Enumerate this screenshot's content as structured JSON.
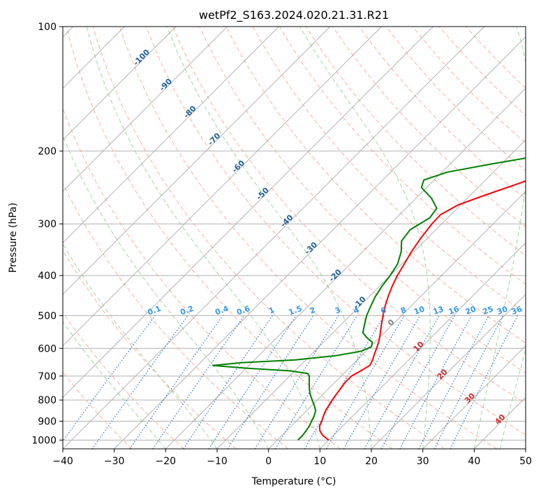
{
  "chart_data": {
    "type": "line",
    "title": "wetPf2_S163.2024.020.21.31.R21",
    "xlabel": "Temperature (°C)",
    "ylabel": "Pressure (hPa)",
    "xlim": [
      -40,
      50
    ],
    "ylim": [
      1050,
      100
    ],
    "y_scale": "log",
    "x_ticks": [
      -40,
      -30,
      -20,
      -10,
      0,
      10,
      20,
      30,
      40,
      50
    ],
    "y_ticks": [
      100,
      200,
      300,
      400,
      500,
      600,
      700,
      800,
      900,
      1000
    ],
    "grid": true,
    "skew": "skew-T log-P",
    "series": [
      {
        "role": "temperature",
        "color": "#ff0000",
        "points": [
          {
            "p": 1000,
            "t": 10.0
          },
          {
            "p": 975,
            "t": 8.0
          },
          {
            "p": 950,
            "t": 6.5
          },
          {
            "p": 925,
            "t": 5.5
          },
          {
            "p": 900,
            "t": 5.0
          },
          {
            "p": 875,
            "t": 4.3
          },
          {
            "p": 850,
            "t": 3.7
          },
          {
            "p": 825,
            "t": 3.3
          },
          {
            "p": 800,
            "t": 2.9
          },
          {
            "p": 775,
            "t": 2.6
          },
          {
            "p": 750,
            "t": 2.3
          },
          {
            "p": 725,
            "t": 2.0
          },
          {
            "p": 700,
            "t": 2.0
          },
          {
            "p": 680,
            "t": 2.8
          },
          {
            "p": 660,
            "t": 3.5
          },
          {
            "p": 640,
            "t": 3.0
          },
          {
            "p": 620,
            "t": 2.2
          },
          {
            "p": 600,
            "t": 1.5
          },
          {
            "p": 575,
            "t": 0.5
          },
          {
            "p": 550,
            "t": -0.8
          },
          {
            "p": 525,
            "t": -2.2
          },
          {
            "p": 500,
            "t": -3.6
          },
          {
            "p": 475,
            "t": -5.0
          },
          {
            "p": 450,
            "t": -6.3
          },
          {
            "p": 425,
            "t": -7.5
          },
          {
            "p": 400,
            "t": -8.6
          },
          {
            "p": 375,
            "t": -9.5
          },
          {
            "p": 350,
            "t": -10.5
          },
          {
            "p": 325,
            "t": -11.3
          },
          {
            "p": 300,
            "t": -11.9
          },
          {
            "p": 285,
            "t": -12.0
          },
          {
            "p": 270,
            "t": -10.5
          },
          {
            "p": 255,
            "t": -7.0
          },
          {
            "p": 240,
            "t": -3.0
          },
          {
            "p": 225,
            "t": 1.0
          },
          {
            "p": 210,
            "t": 4.5
          },
          {
            "p": 200,
            "t": 7.0
          },
          {
            "p": 185,
            "t": 10.5
          },
          {
            "p": 170,
            "t": 13.5
          },
          {
            "p": 155,
            "t": 16.0
          },
          {
            "p": 140,
            "t": 19.0
          },
          {
            "p": 125,
            "t": 22.5
          },
          {
            "p": 110,
            "t": 25.5
          },
          {
            "p": 100,
            "t": 27.5
          }
        ]
      },
      {
        "role": "dewpoint",
        "color": "#008000",
        "points": [
          {
            "p": 1000,
            "t": 4.0
          },
          {
            "p": 975,
            "t": 4.0
          },
          {
            "p": 950,
            "t": 3.8
          },
          {
            "p": 925,
            "t": 3.5
          },
          {
            "p": 900,
            "t": 3.0
          },
          {
            "p": 875,
            "t": 2.5
          },
          {
            "p": 850,
            "t": 1.8
          },
          {
            "p": 825,
            "t": 0.5
          },
          {
            "p": 800,
            "t": -1.0
          },
          {
            "p": 775,
            "t": -2.5
          },
          {
            "p": 750,
            "t": -3.8
          },
          {
            "p": 725,
            "t": -5.0
          },
          {
            "p": 700,
            "t": -6.2
          },
          {
            "p": 690,
            "t": -7.0
          },
          {
            "p": 680,
            "t": -11.0
          },
          {
            "p": 670,
            "t": -20.0
          },
          {
            "p": 660,
            "t": -27.0
          },
          {
            "p": 650,
            "t": -22.0
          },
          {
            "p": 640,
            "t": -12.0
          },
          {
            "p": 625,
            "t": -5.0
          },
          {
            "p": 610,
            "t": -1.0
          },
          {
            "p": 595,
            "t": 0.2
          },
          {
            "p": 580,
            "t": -0.5
          },
          {
            "p": 565,
            "t": -2.5
          },
          {
            "p": 550,
            "t": -4.2
          },
          {
            "p": 525,
            "t": -5.5
          },
          {
            "p": 500,
            "t": -6.8
          },
          {
            "p": 475,
            "t": -7.8
          },
          {
            "p": 450,
            "t": -8.8
          },
          {
            "p": 425,
            "t": -9.5
          },
          {
            "p": 400,
            "t": -10.0
          },
          {
            "p": 375,
            "t": -10.8
          },
          {
            "p": 350,
            "t": -12.5
          },
          {
            "p": 330,
            "t": -14.5
          },
          {
            "p": 310,
            "t": -15.0
          },
          {
            "p": 290,
            "t": -13.5
          },
          {
            "p": 275,
            "t": -14.0
          },
          {
            "p": 260,
            "t": -17.0
          },
          {
            "p": 245,
            "t": -21.0
          },
          {
            "p": 235,
            "t": -22.0
          },
          {
            "p": 225,
            "t": -19.0
          },
          {
            "p": 215,
            "t": -12.0
          },
          {
            "p": 205,
            "t": -4.0
          },
          {
            "p": 195,
            "t": 0.5
          },
          {
            "p": 185,
            "t": 2.3
          },
          {
            "p": 170,
            "t": 4.5
          },
          {
            "p": 155,
            "t": 6.5
          },
          {
            "p": 145,
            "t": 7.5
          },
          {
            "p": 135,
            "t": 7.0
          },
          {
            "p": 125,
            "t": 5.5
          },
          {
            "p": 120,
            "t": 4.0
          },
          {
            "p": 115,
            "t": 3.5
          },
          {
            "p": 110,
            "t": 5.5
          },
          {
            "p": 105,
            "t": 7.5
          },
          {
            "p": 100,
            "t": 9.0
          }
        ]
      }
    ],
    "dry_adiabats_c": [
      -30,
      -20,
      -10,
      0,
      10,
      20,
      30,
      40,
      50,
      60,
      70,
      80,
      90,
      100,
      110,
      120,
      130,
      140,
      150,
      160,
      170
    ],
    "moist_adiabats_c": [
      -20,
      -10,
      0,
      10,
      20,
      30,
      40,
      45
    ],
    "mixing_ratio_lines": [
      {
        "w": 0.1,
        "label": "0.1"
      },
      {
        "w": 0.2,
        "label": "0.2"
      },
      {
        "w": 0.4,
        "label": "0.4"
      },
      {
        "w": 0.6,
        "label": "0.6"
      },
      {
        "w": 1,
        "label": "1"
      },
      {
        "w": 1.5,
        "label": "1.5"
      },
      {
        "w": 2,
        "label": "2"
      },
      {
        "w": 3,
        "label": "3"
      },
      {
        "w": 4,
        "label": "4"
      },
      {
        "w": 6,
        "label": "6"
      },
      {
        "w": 8,
        "label": "8"
      },
      {
        "w": 10,
        "label": "10"
      },
      {
        "w": 13,
        "label": "13"
      },
      {
        "w": 16,
        "label": "16"
      },
      {
        "w": 20,
        "label": "20"
      },
      {
        "w": 25,
        "label": "25"
      },
      {
        "w": 30,
        "label": "30"
      },
      {
        "w": 36,
        "label": "36"
      }
    ],
    "isotherm_labels": [
      {
        "t": -100,
        "label": "-100"
      },
      {
        "t": -90,
        "label": "-90"
      },
      {
        "t": -80,
        "label": "-80"
      },
      {
        "t": -70,
        "label": "-70"
      },
      {
        "t": -60,
        "label": "-60"
      },
      {
        "t": -50,
        "label": "-50"
      },
      {
        "t": -40,
        "label": "-40"
      },
      {
        "t": -30,
        "label": "-30"
      },
      {
        "t": -20,
        "label": "-20"
      },
      {
        "t": -10,
        "label": "-10"
      }
    ],
    "theta_e_labels": [
      {
        "t": 0,
        "p": 525,
        "label": "0",
        "color": "#808080"
      },
      {
        "t": 10,
        "p": 600,
        "label": "10",
        "color": "#d62728"
      },
      {
        "t": 20,
        "p": 700,
        "label": "20",
        "color": "#d62728"
      },
      {
        "t": 30,
        "p": 800,
        "label": "30",
        "color": "#d62728"
      },
      {
        "t": 40,
        "p": 900,
        "label": "40",
        "color": "#d62728"
      }
    ],
    "colors": {
      "temperature": "#ff0000",
      "dewpoint": "#008000",
      "isotherm": "#aaaaaa",
      "dry_adiabat": "#ff9f80",
      "moist_adiabat": "#8fd18f",
      "mixing_ratio": "#1f77d4",
      "isotherm_label": "#1f5f99"
    }
  }
}
